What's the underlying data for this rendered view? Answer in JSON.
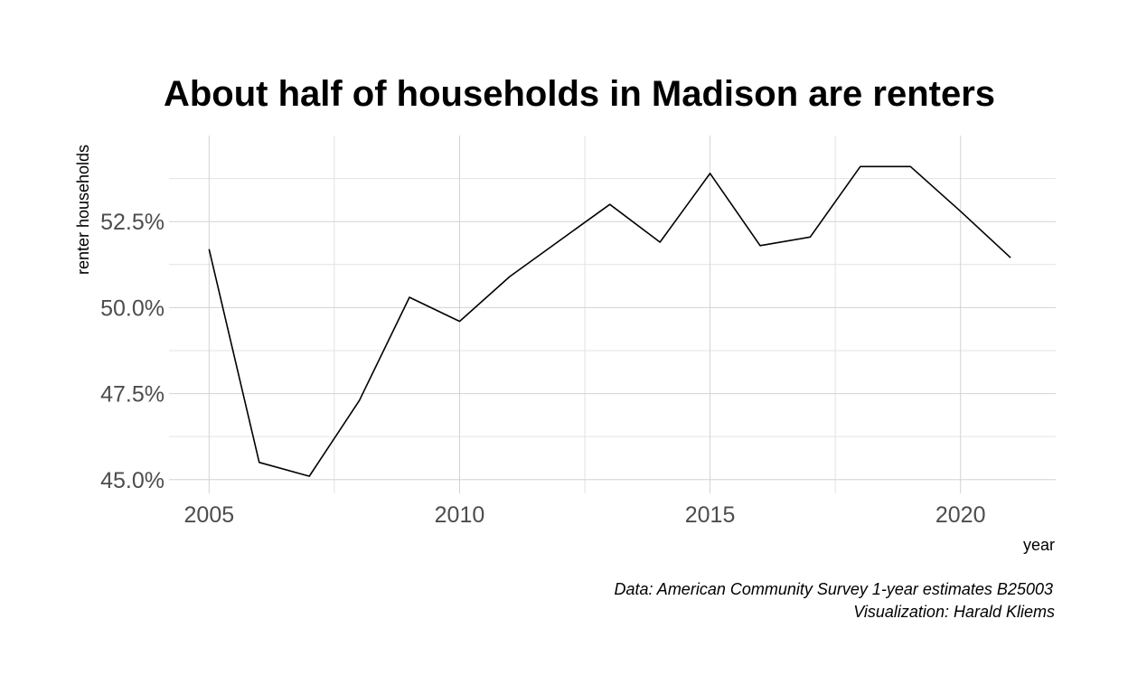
{
  "chart_data": {
    "type": "line",
    "title": "About half of households in Madison are renters",
    "xlabel": "year",
    "ylabel": "renter households",
    "caption_lines": [
      "Data: American Community Survey 1-year estimates B25003",
      "Visualization: Harald Kliems"
    ],
    "x": [
      2005,
      2006,
      2007,
      2008,
      2009,
      2010,
      2011,
      2012,
      2013,
      2014,
      2015,
      2016,
      2017,
      2018,
      2019,
      2020,
      2021
    ],
    "values": [
      51.7,
      45.5,
      45.1,
      47.3,
      50.3,
      49.6,
      50.9,
      51.95,
      53.0,
      51.9,
      53.9,
      51.8,
      52.05,
      54.1,
      54.1,
      52.8,
      51.45
    ],
    "xlim": [
      2004.2,
      2021.9
    ],
    "ylim": [
      44.6,
      55.0
    ],
    "x_ticks": [
      2005,
      2010,
      2015,
      2020
    ],
    "x_tick_labels": [
      "2005",
      "2010",
      "2015",
      "2020"
    ],
    "y_ticks": [
      45.0,
      47.5,
      50.0,
      52.5
    ],
    "y_tick_labels": [
      "45.0%",
      "47.5%",
      "50.0%",
      "52.5%"
    ],
    "grid": true,
    "legend": "none",
    "colors": {
      "line": "#000000",
      "grid": "#d3d3d3",
      "tick_text": "#4d4d4d"
    }
  }
}
